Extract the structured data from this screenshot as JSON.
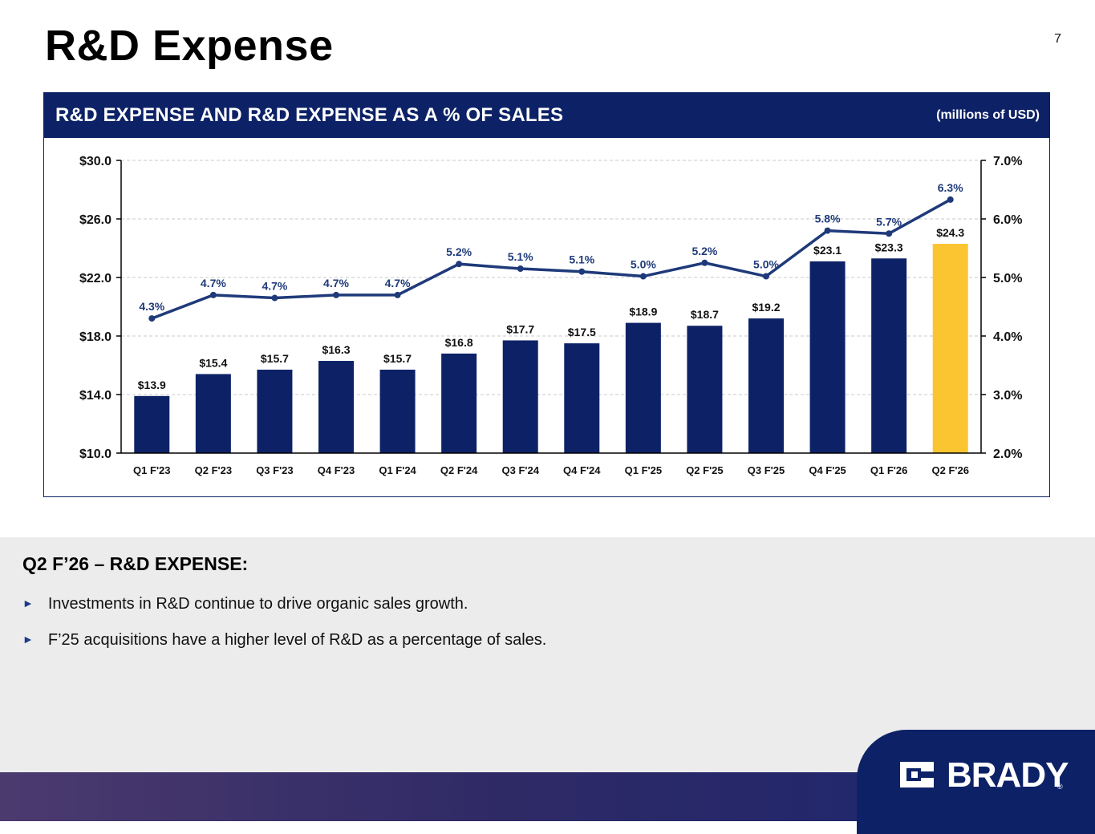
{
  "page": {
    "title": "R&D Expense",
    "number": "7"
  },
  "panel": {
    "title": "R&D EXPENSE AND R&D EXPENSE AS A % OF SALES",
    "units": "(millions of USD)"
  },
  "chart_data": {
    "type": "bar",
    "title": "R&D EXPENSE AND R&D EXPENSE AS A % OF SALES",
    "categories": [
      "Q1 F'23",
      "Q2 F'23",
      "Q3 F'23",
      "Q4 F'23",
      "Q1 F'24",
      "Q2 F'24",
      "Q3 F'24",
      "Q4 F'24",
      "Q1 F'25",
      "Q2 F'25",
      "Q3 F'25",
      "Q4 F'25",
      "Q1 F'26",
      "Q2 F'26"
    ],
    "series": [
      {
        "name": "R&D Expense",
        "type": "bar",
        "axis": "left",
        "values": [
          13.9,
          15.4,
          15.7,
          16.3,
          15.7,
          16.8,
          17.7,
          17.5,
          18.9,
          18.7,
          19.2,
          23.1,
          23.3,
          24.3
        ],
        "labels": [
          "$13.9",
          "$15.4",
          "$15.7",
          "$16.3",
          "$15.7",
          "$16.8",
          "$17.7",
          "$17.5",
          "$18.9",
          "$18.7",
          "$19.2",
          "$23.1",
          "$23.3",
          "$24.3"
        ],
        "color": "#0d2266",
        "highlight_color": "#fbc531",
        "highlight_index": 13
      },
      {
        "name": "R&D Expense as % of Sales",
        "type": "line",
        "axis": "right",
        "values": [
          4.3,
          4.7,
          4.65,
          4.7,
          4.7,
          5.23,
          5.15,
          5.1,
          5.02,
          5.25,
          5.02,
          5.8,
          5.75,
          6.33
        ],
        "labels": [
          "4.3%",
          "4.7%",
          "4.7%",
          "4.7%",
          "4.7%",
          "5.2%",
          "5.1%",
          "5.1%",
          "5.0%",
          "5.2%",
          "5.0%",
          "5.8%",
          "5.7%",
          "6.3%"
        ],
        "color": "#1f3a7a"
      }
    ],
    "y_left": {
      "min": 10,
      "max": 30,
      "ticks": [
        "$10.0",
        "$14.0",
        "$18.0",
        "$22.0",
        "$26.0",
        "$30.0"
      ]
    },
    "y_right": {
      "min": 2,
      "max": 7,
      "ticks": [
        "2.0%",
        "3.0%",
        "4.0%",
        "5.0%",
        "6.0%",
        "7.0%"
      ]
    },
    "grid": true
  },
  "section": {
    "heading": "Q2 F’26 – R&D EXPENSE:",
    "bullets": [
      "Investments in R&D continue to drive organic sales growth.",
      "F’25 acquisitions have a higher level of R&D as a percentage of sales."
    ]
  },
  "logo": {
    "text": "BRADY",
    "reg": "®"
  },
  "icons": {
    "bullet": "triangle-right-icon",
    "logo": "brady-logo-icon"
  }
}
